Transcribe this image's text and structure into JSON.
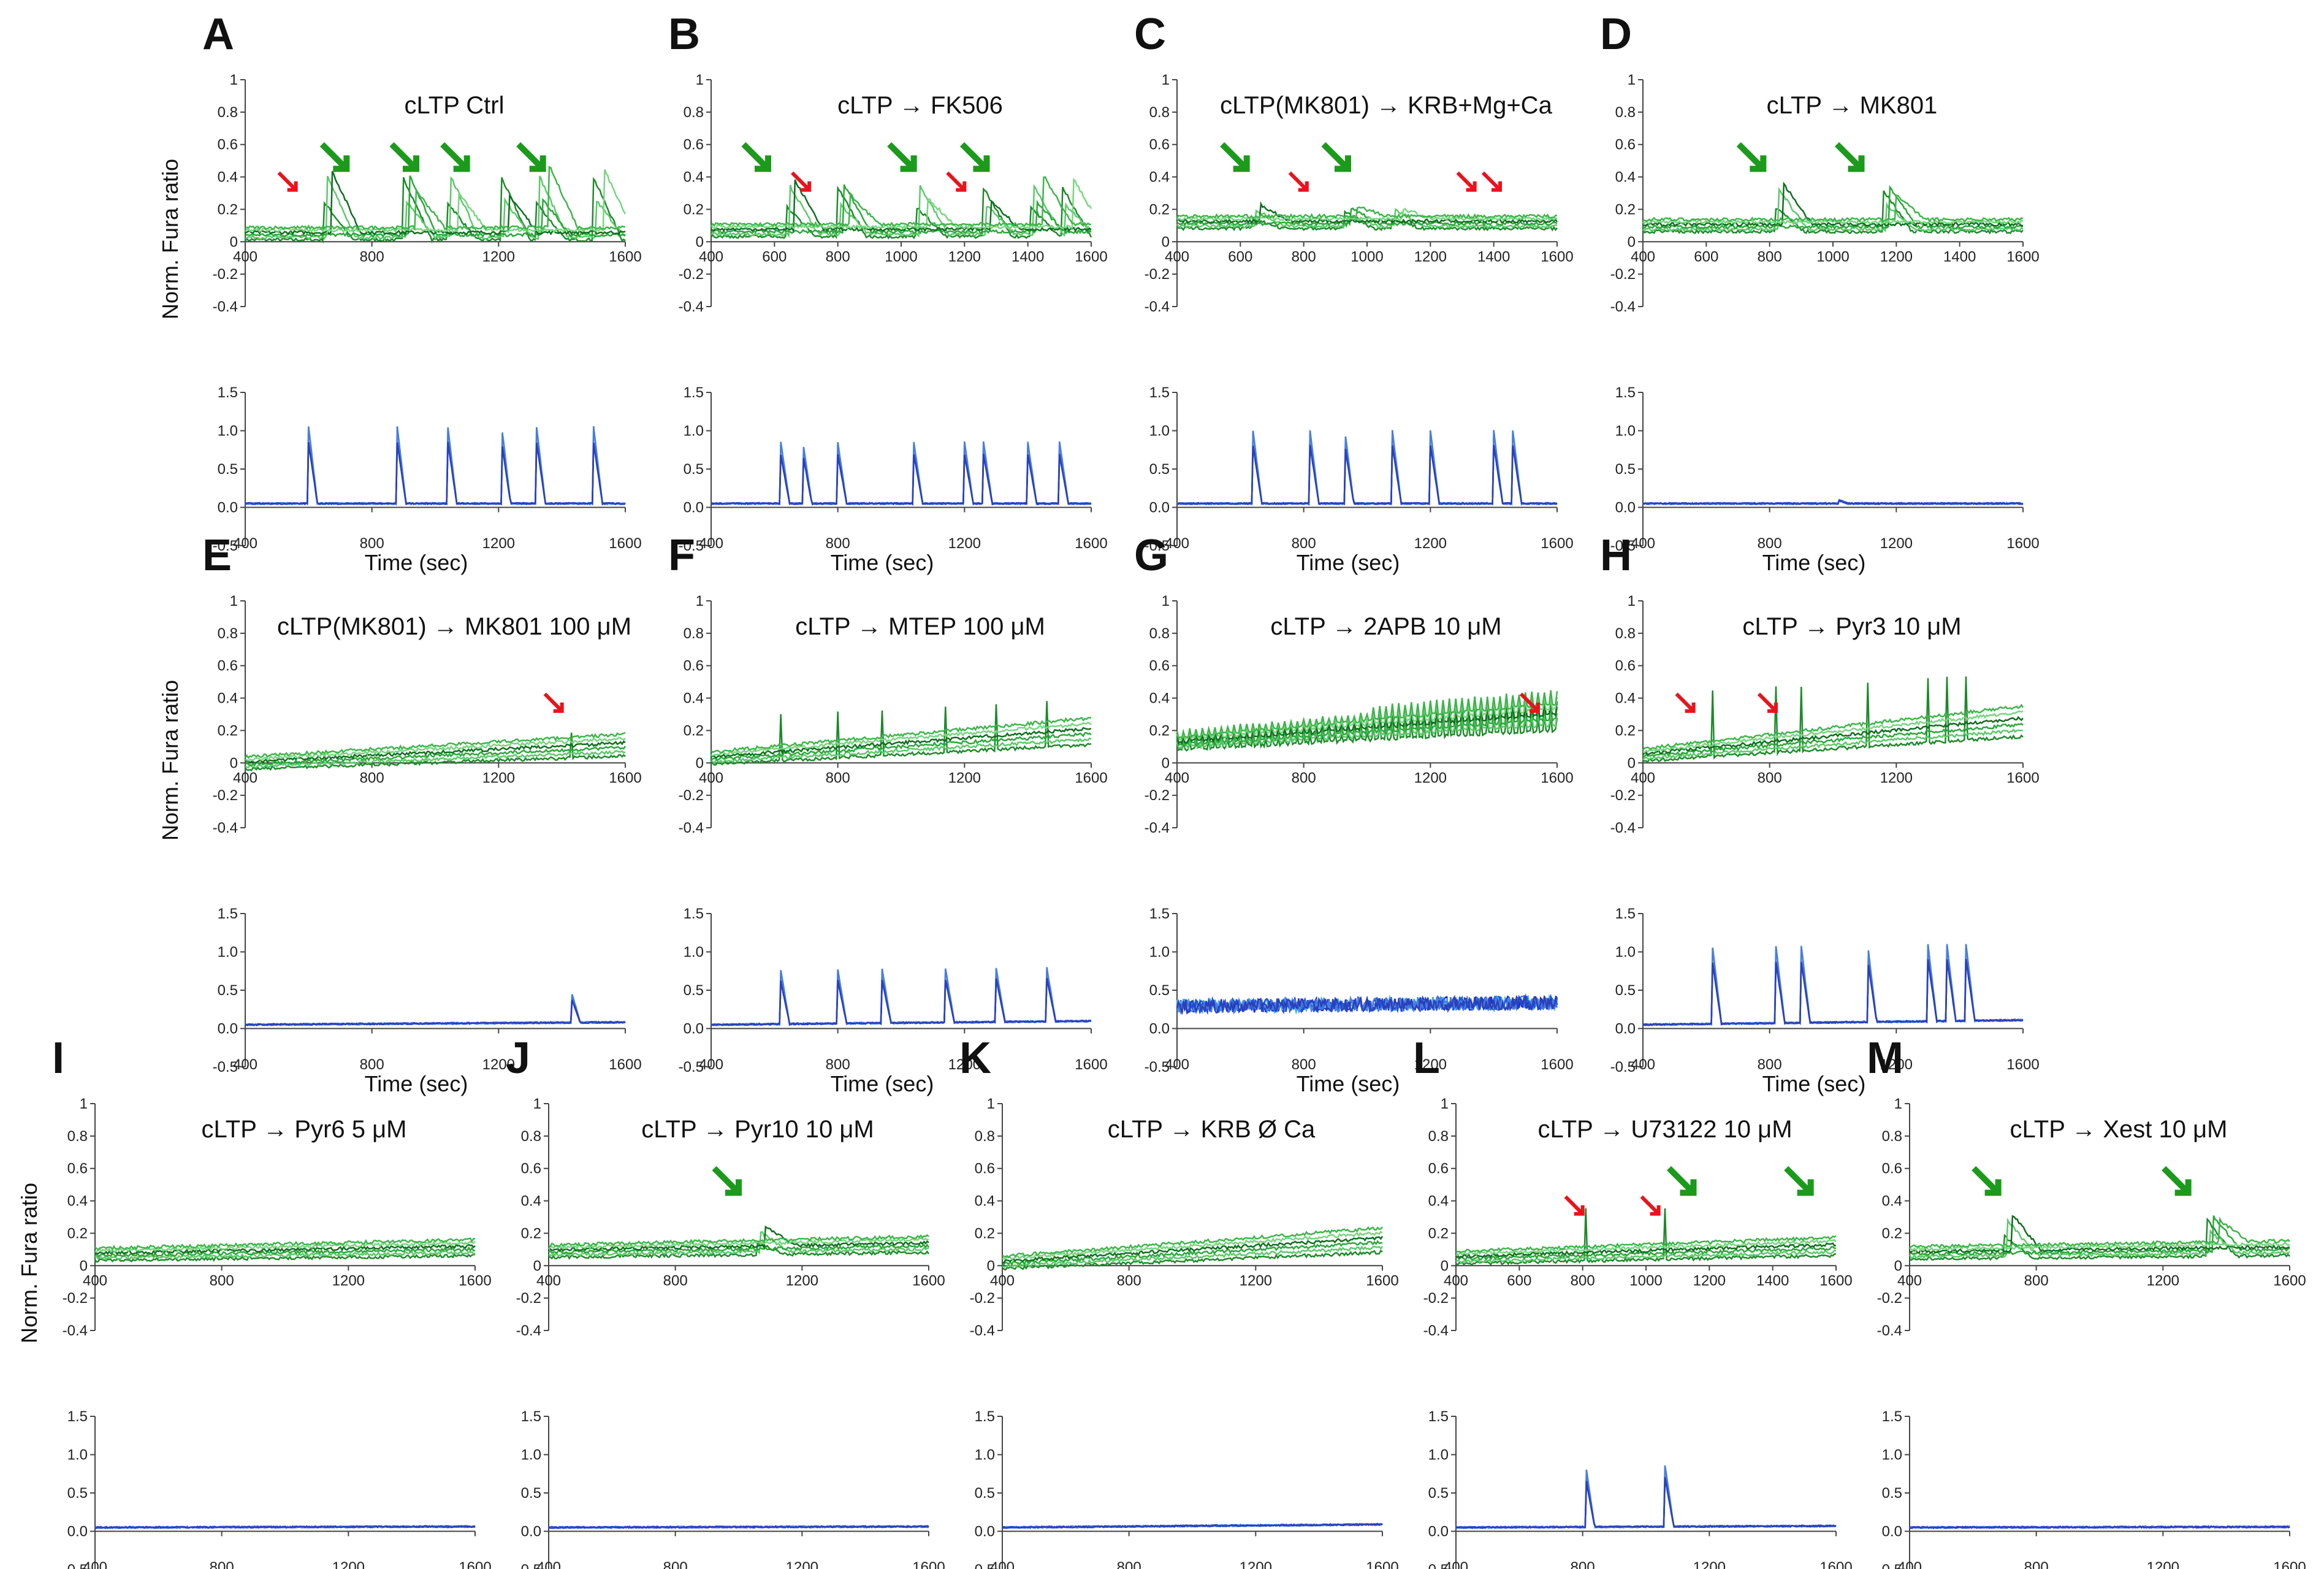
{
  "chart_data": {
    "type": "line",
    "description_units": {
      "x": "Time (sec)",
      "y_top": "Norm. Fura ratio",
      "y_bottom": "Norm. Fura ratio"
    },
    "y_axis_label": "Norm. Fura ratio",
    "x_axis_label": "Time (sec)",
    "top_ylim": [
      -0.4,
      1
    ],
    "top_yticks": [
      "1",
      "0.8",
      "0.6",
      "0.4",
      "0.2",
      "0",
      "-0.2",
      "-0.4"
    ],
    "bottom_ylim": [
      -0.5,
      1.5
    ],
    "bottom_yticks": [
      "1.5",
      "1.0",
      "0.5",
      "0.0",
      "-0.5"
    ],
    "xlim": [
      400,
      1600
    ],
    "colors": {
      "green_dark": "#1e8a2a",
      "green_light": "#5cc96a",
      "blue_dark": "#1a2fd0",
      "blue_light": "#3fa9ec",
      "red_arrow": "#e8141c",
      "green_arrow": "#1c9a1c"
    },
    "panels": [
      {
        "letter": "A",
        "condition": "cLTP  Ctrl",
        "top_xticks": [
          "400",
          "800",
          "1200",
          "1600"
        ],
        "bottom_xticks": [
          "400",
          "800",
          "1200",
          "1600"
        ],
        "spikes": [
          600,
          880,
          1040,
          1210,
          1320,
          1500
        ],
        "green_waves": [
          650,
          900,
          1040,
          1210,
          1320,
          1500
        ],
        "wave_amp": 0.38,
        "spike_amp": 1.0,
        "baseline": 0.05,
        "drift": 0.0,
        "red_arrows": [
          560
        ],
        "green_arrows": [
          720,
          940,
          1100,
          1340
        ]
      },
      {
        "letter": "B",
        "condition": "cLTP → FK506",
        "top_xticks": [
          "400",
          "600",
          "800",
          "1000",
          "1200",
          "1400",
          "1600"
        ],
        "bottom_xticks": [
          "400",
          "800",
          "1200",
          "1600"
        ],
        "spikes": [
          620,
          690,
          800,
          1040,
          1200,
          1260,
          1400,
          1500
        ],
        "green_waves": [
          640,
          800,
          1050,
          1260,
          1410,
          1510
        ],
        "wave_amp": 0.3,
        "spike_amp": 0.8,
        "baseline": 0.07,
        "drift": 0.0,
        "red_arrows": [
          710,
          1200
        ],
        "green_arrows": [
          580,
          1040,
          1270
        ]
      },
      {
        "letter": "C",
        "condition": "cLTP(MK801) → KRB+Mg+Ca",
        "top_xticks": [
          "400",
          "600",
          "800",
          "1000",
          "1200",
          "1400",
          "1600"
        ],
        "bottom_xticks": [
          "400",
          "800",
          "1200",
          "1600"
        ],
        "spikes": [
          640,
          820,
          930,
          1080,
          1200,
          1400,
          1460
        ],
        "green_waves": [
          640,
          930,
          1080
        ],
        "wave_amp": 0.1,
        "spike_amp": 0.95,
        "baseline": 0.12,
        "drift": 0.0,
        "red_arrows": [
          810,
          1340,
          1420
        ],
        "green_arrows": [
          620,
          940
        ]
      },
      {
        "letter": "D",
        "condition": "cLTP → MK801",
        "top_xticks": [
          "400",
          "600",
          "800",
          "1000",
          "1200",
          "1400",
          "1600"
        ],
        "bottom_xticks": [
          "400",
          "800",
          "1200",
          "1600"
        ],
        "spikes": [
          1020
        ],
        "green_waves": [
          820,
          1160
        ],
        "wave_amp": 0.25,
        "spike_amp": 0.05,
        "baseline": 0.1,
        "drift": 0.0,
        "red_arrows": [],
        "green_arrows": [
          780,
          1090
        ]
      },
      {
        "letter": "E",
        "condition": "cLTP(MK801) → MK801 100 μM",
        "top_xticks": [
          "400",
          "800",
          "1200",
          "1600"
        ],
        "bottom_xticks": [
          "400",
          "800",
          "1200",
          "1600"
        ],
        "spikes": [
          1430
        ],
        "green_waves": [],
        "wave_amp": 0.0,
        "spike_amp": 0.4,
        "baseline": 0.0,
        "drift": 0.08,
        "red_arrows": [
          1400
        ],
        "green_arrows": []
      },
      {
        "letter": "F",
        "condition": "cLTP → MTEP 100 μM",
        "top_xticks": [
          "400",
          "800",
          "1200",
          "1600"
        ],
        "bottom_xticks": [
          "400",
          "800",
          "1200",
          "1600"
        ],
        "spikes": [
          620,
          800,
          940,
          1140,
          1300,
          1460
        ],
        "green_waves": [],
        "wave_amp": 0.0,
        "spike_amp": 0.7,
        "baseline": 0.03,
        "drift": 0.12,
        "red_arrows": [],
        "green_arrows": []
      },
      {
        "letter": "G",
        "condition": "cLTP → 2APB 10 μM",
        "top_xticks": [
          "400",
          "800",
          "1200",
          "1600"
        ],
        "bottom_xticks": [
          "400",
          "800",
          "1200",
          "1600"
        ],
        "spikes": [],
        "green_waves": [],
        "wave_amp": 0.0,
        "spike_amp": 0.0,
        "baseline": 0.12,
        "drift": 0.12,
        "red_arrows": [
          1540
        ],
        "green_arrows": []
      },
      {
        "letter": "H",
        "condition": "cLTP → Pyr3 10 μM",
        "top_xticks": [
          "400",
          "800",
          "1200",
          "1600"
        ],
        "bottom_xticks": [
          "400",
          "800",
          "1200",
          "1600"
        ],
        "spikes": [
          620,
          820,
          900,
          1110,
          1300,
          1360,
          1420
        ],
        "green_waves": [],
        "wave_amp": 0.0,
        "spike_amp": 1.0,
        "baseline": 0.05,
        "drift": 0.15,
        "red_arrows": [
          560,
          820
        ],
        "green_arrows": []
      },
      {
        "letter": "I",
        "condition": "cLTP → Pyr6 5 μM",
        "top_xticks": [
          "400",
          "800",
          "1200",
          "1600"
        ],
        "bottom_xticks": [
          "400",
          "800",
          "1200",
          "1600"
        ],
        "spikes": [],
        "green_waves": [],
        "wave_amp": 0.0,
        "spike_amp": 0.0,
        "baseline": 0.07,
        "drift": 0.03,
        "red_arrows": [],
        "green_arrows": []
      },
      {
        "letter": "J",
        "condition": "cLTP → Pyr10 10 μM",
        "top_xticks": [
          "400",
          "800",
          "1200",
          "1600"
        ],
        "bottom_xticks": [
          "400",
          "800",
          "1200",
          "1600"
        ],
        "spikes": [],
        "green_waves": [
          1060
        ],
        "wave_amp": 0.12,
        "spike_amp": 0.0,
        "baseline": 0.09,
        "drift": 0.03,
        "red_arrows": [],
        "green_arrows": [
          1000
        ]
      },
      {
        "letter": "K",
        "condition": "cLTP → KRB Ø Ca",
        "top_xticks": [
          "400",
          "800",
          "1200",
          "1600"
        ],
        "bottom_xticks": [
          "400",
          "800",
          "1200",
          "1600"
        ],
        "spikes": [],
        "green_waves": [],
        "wave_amp": 0.0,
        "spike_amp": 0.0,
        "baseline": 0.02,
        "drift": 0.1,
        "red_arrows": [],
        "green_arrows": []
      },
      {
        "letter": "L",
        "condition": "cLTP → U73122 10 μM",
        "top_xticks": [
          "400",
          "600",
          "800",
          "1000",
          "1200",
          "1400",
          "1600"
        ],
        "bottom_xticks": [
          "400",
          "800",
          "1200",
          "1600"
        ],
        "spikes": [
          810,
          1060
        ],
        "green_waves": [],
        "wave_amp": 0.0,
        "spike_amp": 0.8,
        "baseline": 0.05,
        "drift": 0.05,
        "red_arrows": [
          800,
          1040
        ],
        "green_arrows": [
          1150,
          1520
        ]
      },
      {
        "letter": "M",
        "condition": "cLTP → Xest 10 μM",
        "top_xticks": [
          "400",
          "800",
          "1200",
          "1600"
        ],
        "bottom_xticks": [
          "400",
          "800",
          "1200",
          "1600"
        ],
        "spikes": [],
        "green_waves": [
          700,
          1340
        ],
        "wave_amp": 0.22,
        "spike_amp": 0.0,
        "baseline": 0.08,
        "drift": 0.02,
        "red_arrows": [],
        "green_arrows": [
          680,
          1280
        ]
      }
    ]
  }
}
